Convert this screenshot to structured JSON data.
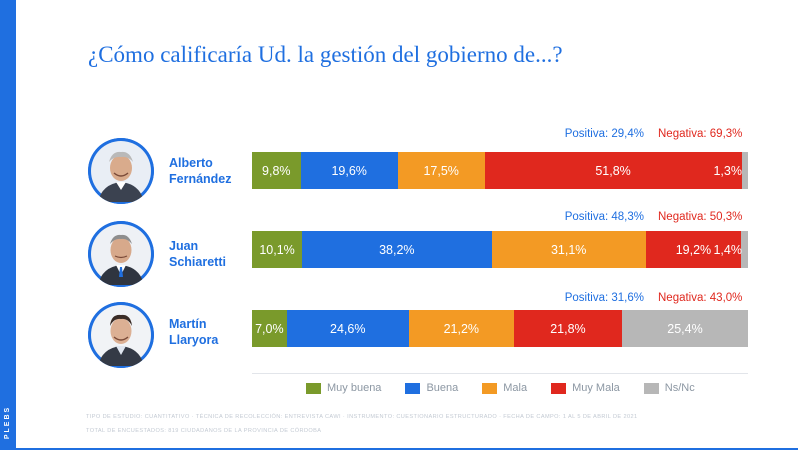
{
  "brand": "PLEBS",
  "colors": {
    "brand_blue": "#1f6fe0",
    "negative_red": "#e0281e",
    "muy_buena": "#7a9a2b",
    "buena": "#1f6fe0",
    "mala": "#f39a24",
    "muy_mala": "#e0281e",
    "ns_nc": "#b7b7b7"
  },
  "chart_data": {
    "type": "bar",
    "orientation": "horizontal",
    "stacked": true,
    "title": "¿Cómo calificaría Ud. la gestión del gobierno de...?",
    "categories": [
      "Alberto Fernández",
      "Juan Schiaretti",
      "Martín Llaryora"
    ],
    "series": [
      {
        "name": "Muy buena",
        "color": "#7a9a2b",
        "values": [
          9.8,
          10.1,
          7.0
        ],
        "labels": [
          "9,8%",
          "10,1%",
          "7,0%"
        ]
      },
      {
        "name": "Buena",
        "color": "#1f6fe0",
        "values": [
          19.6,
          38.2,
          24.6
        ],
        "labels": [
          "19,6%",
          "38,2%",
          "24,6%"
        ]
      },
      {
        "name": "Mala",
        "color": "#f39a24",
        "values": [
          17.5,
          31.1,
          21.2
        ],
        "labels": [
          "17,5%",
          "31,1%",
          "21,2%"
        ]
      },
      {
        "name": "Muy Mala",
        "color": "#e0281e",
        "values": [
          51.8,
          19.2,
          21.8
        ],
        "labels": [
          "51,8%",
          "19,2%",
          "21,8%"
        ]
      },
      {
        "name": "Ns/Nc",
        "color": "#b7b7b7",
        "values": [
          1.3,
          1.4,
          25.4
        ],
        "labels": [
          "1,3%",
          "1,4%",
          "25,4%"
        ]
      }
    ],
    "summary": [
      {
        "positiva": "Positiva: 29,4%",
        "negativa": "Negativa: 69,3%"
      },
      {
        "positiva": "Positiva: 48,3%",
        "negativa": "Negativa: 50,3%"
      },
      {
        "positiva": "Positiva: 31,6%",
        "negativa": "Negativa: 43,0%"
      }
    ],
    "legend_position": "bottom",
    "xlim": [
      0,
      100
    ]
  },
  "people": [
    {
      "first": "Alberto",
      "last": "Fernández"
    },
    {
      "first": "Juan",
      "last": "Schiaretti"
    },
    {
      "first": "Martín",
      "last": "Llaryora"
    }
  ],
  "legend": [
    "Muy buena",
    "Buena",
    "Mala",
    "Muy Mala",
    "Ns/Nc"
  ],
  "footnote": {
    "line1": "TIPO DE ESTUDIO: CUANTITATIVO · TÉCNICA DE RECOLECCIÓN: ENTREVISTA CAWI · INSTRUMENTO: CUESTIONARIO ESTRUCTURADO · FECHA DE CAMPO: 1 AL 5 DE ABRIL DE 2021",
    "line2": "TOTAL DE ENCUESTADOS: 819 CIUDADANOS DE LA PROVINCIA DE CÓRDOBA"
  }
}
